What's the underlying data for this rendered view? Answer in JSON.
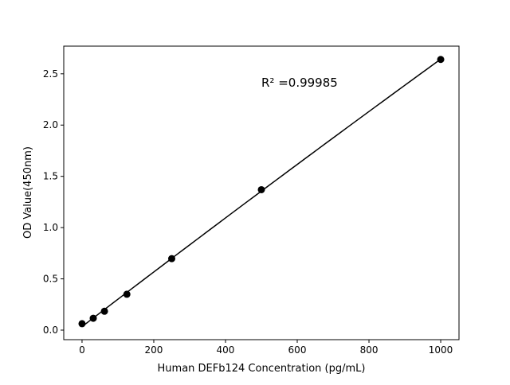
{
  "chart_data": {
    "type": "scatter",
    "title": "",
    "xlabel": "Human DEFb124 Concentration (pg/mL)",
    "ylabel": "OD Value(450nm)",
    "xlim": [
      -51,
      1051
    ],
    "ylim": [
      -0.093,
      2.77
    ],
    "xticks": [
      0,
      200,
      400,
      600,
      800,
      1000
    ],
    "xtick_labels": [
      "0",
      "200",
      "400",
      "600",
      "800",
      "1000"
    ],
    "yticks": [
      0.0,
      0.5,
      1.0,
      1.5,
      2.0,
      2.5
    ],
    "ytick_labels": [
      "0.0",
      "0.5",
      "1.0",
      "1.5",
      "2.0",
      "2.5"
    ],
    "grid": false,
    "annotation": "R² =0.99985",
    "series": [
      {
        "x": [
          0,
          31.25,
          62.5,
          125,
          250,
          500,
          1000
        ],
        "y": [
          0.063,
          0.116,
          0.184,
          0.35,
          0.697,
          1.37,
          2.64
        ],
        "marker": "circle",
        "line": "fit",
        "color": "#000000"
      }
    ]
  }
}
